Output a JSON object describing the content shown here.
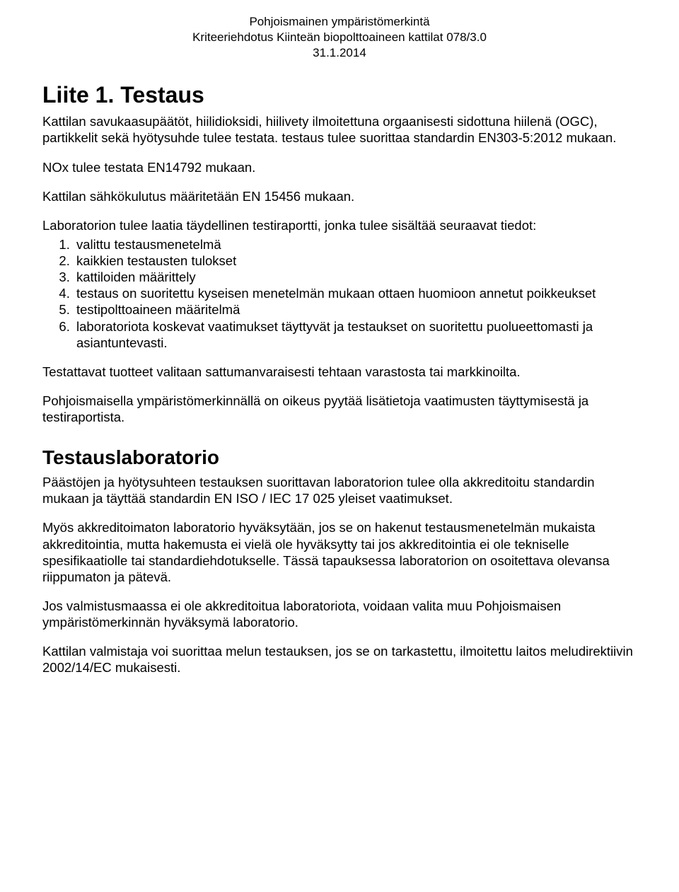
{
  "header": {
    "line1": "Pohjoismainen ympäristömerkintä",
    "line2": "Kriteeriehdotus Kiinteän biopolttoaineen kattilat 078/3.0",
    "line3": "31.1.2014"
  },
  "title": "Liite 1. Testaus",
  "intro": "Kattilan savukaasupäätöt, hiilidioksidi, hiilivety ilmoitettuna orgaanisesti sidottuna hiilenä (OGC), partikkelit sekä hyötysuhde tulee testata. testaus tulee suorittaa standardin EN303-5:2012 mukaan.",
  "nox": "NOx tulee testata EN14792 mukaan.",
  "sahko": "Kattilan sähkökulutus määritetään EN 15456 mukaan.",
  "lab_intro": "Laboratorion tulee laatia täydellinen testiraportti, jonka tulee sisältää seuraavat tiedot:",
  "list": [
    "valittu testausmenetelmä",
    "kaikkien testausten tulokset",
    "kattiloiden määrittely",
    "testaus on suoritettu kyseisen menetelmän mukaan ottaen huomioon annetut poikkeukset",
    "testipolttoaineen määritelmä",
    "laboratoriota koskevat vaatimukset täyttyvät ja testaukset on suoritettu puolueettomasti ja asiantuntevasti."
  ],
  "p_testattavat": "Testattavat tuotteet valitaan sattumanvaraisesti tehtaan varastosta tai markkinoilta.",
  "p_pohjoismaisella": "Pohjoismaisella ympäristömerkinnällä on oikeus pyytää lisätietoja vaatimusten täyttymisestä ja testiraportista.",
  "h2": "Testauslaboratorio",
  "p_paastojen": "Päästöjen ja hyötysuhteen testauksen suorittavan laboratorion tulee olla akkreditoitu standardin mukaan ja täyttää standardin EN ISO / IEC 17 025 yleiset vaatimukset.",
  "p_myos": "Myös akkreditoimaton laboratorio hyväksytään, jos se on hakenut testausmenetelmän mukaista akkreditointia, mutta hakemusta ei vielä ole hyväksytty tai jos akkreditointia ei ole tekniselle spesifikaatiolle tai standardiehdotukselle. Tässä tapauksessa laboratorion on osoitettava olevansa riippumaton ja pätevä.",
  "p_jos": "Jos valmistusmaassa ei ole akkreditoitua laboratoriota, voidaan valita muu Pohjoismaisen ympäristömerkinnän hyväksymä laboratorio.",
  "p_kattilan": "Kattilan valmistaja voi suorittaa melun testauksen, jos se on tarkastettu, ilmoitettu laitos meludirektiivin 2002/14/EC mukaisesti."
}
